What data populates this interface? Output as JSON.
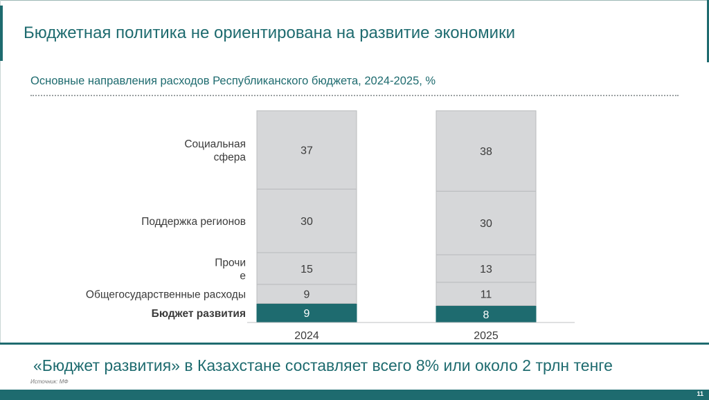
{
  "slide_title": "Бюджетная политика не ориентирована на развитие экономики",
  "conclusion": "«Бюджет развития» в Казахстане составляет всего 8% или около 2 трлн тенге",
  "source": "Источник: МФ",
  "page_number": "11",
  "colors": {
    "accent": "#1e6b6f",
    "segment": "#d6d7d9",
    "segment_border": "#b9bbbd"
  },
  "chart_data": {
    "type": "bar",
    "stacked": true,
    "title": "Основные направления расходов Республиканского бюджета, 2024-2025, %",
    "categories": [
      "2024",
      "2025"
    ],
    "series": [
      {
        "name": "Бюджет развития",
        "values": [
          9,
          8
        ],
        "highlight": true
      },
      {
        "name": "Общегосударственные расходы",
        "values": [
          9,
          11
        ]
      },
      {
        "name": "Прочие",
        "label_lines": [
          "Прочи",
          "е"
        ],
        "values": [
          15,
          13
        ]
      },
      {
        "name": "Поддержка регионов",
        "values": [
          30,
          30
        ]
      },
      {
        "name": "Социальная сфера",
        "label_lines": [
          "Социальная",
          "сфера"
        ],
        "values": [
          37,
          38
        ]
      }
    ],
    "ylim": [
      0,
      100
    ],
    "legend": "category labels on left",
    "grid": false
  }
}
